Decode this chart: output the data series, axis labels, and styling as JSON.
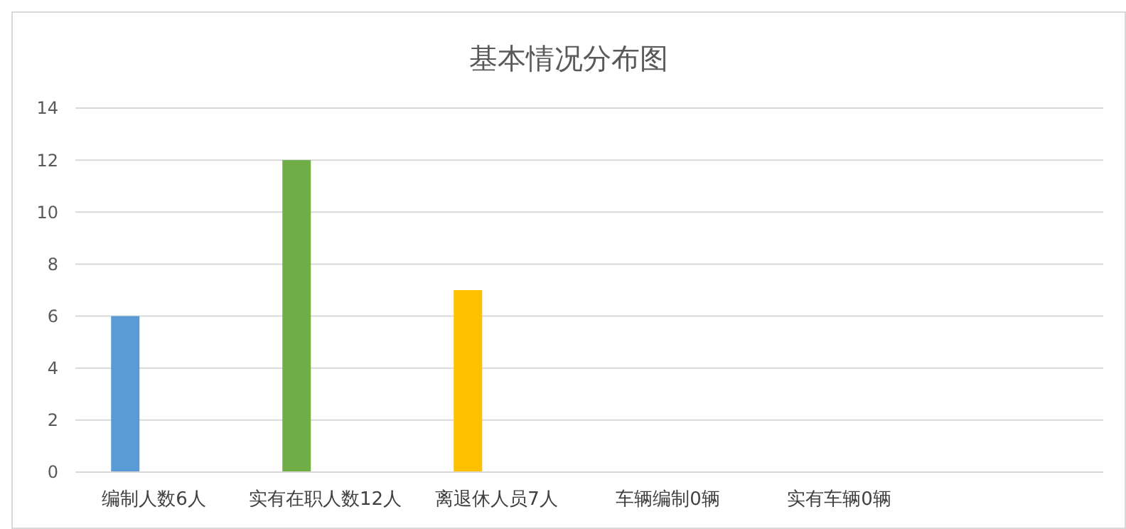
{
  "chart_data": {
    "type": "bar",
    "title": "基本情况分布图",
    "categories": [
      "编制人数6人",
      "实有在职人数12人",
      "离退休人员7人",
      "车辆编制0辆",
      "实有车辆0辆"
    ],
    "values": [
      6,
      12,
      7,
      0,
      0
    ],
    "colors": [
      "#5b9bd5",
      "#70ad47",
      "#ffc000",
      "#a5a5a5",
      "#4472c4"
    ],
    "ylim": [
      0,
      14
    ],
    "yticks": [
      0,
      2,
      4,
      6,
      8,
      10,
      12,
      14
    ],
    "grid": "y"
  }
}
